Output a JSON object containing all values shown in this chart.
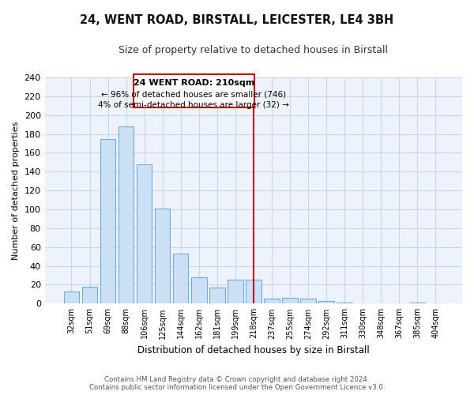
{
  "title": "24, WENT ROAD, BIRSTALL, LEICESTER, LE4 3BH",
  "subtitle": "Size of property relative to detached houses in Birstall",
  "xlabel": "Distribution of detached houses by size in Birstall",
  "ylabel": "Number of detached properties",
  "bar_labels": [
    "32sqm",
    "51sqm",
    "69sqm",
    "88sqm",
    "106sqm",
    "125sqm",
    "144sqm",
    "162sqm",
    "181sqm",
    "199sqm",
    "218sqm",
    "237sqm",
    "255sqm",
    "274sqm",
    "292sqm",
    "311sqm",
    "330sqm",
    "348sqm",
    "367sqm",
    "385sqm",
    "404sqm"
  ],
  "bar_values": [
    13,
    18,
    175,
    188,
    148,
    101,
    53,
    28,
    17,
    25,
    25,
    5,
    6,
    5,
    3,
    1,
    0,
    0,
    0,
    1,
    0
  ],
  "bar_color": "#cce0f5",
  "bar_edge_color": "#6baed6",
  "highlight_index": 10,
  "highlight_line_color": "#cc0000",
  "property_line_label": "24 WENT ROAD: 210sqm",
  "annotation_line1": "← 96% of detached houses are smaller (746)",
  "annotation_line2": "4% of semi-detached houses are larger (32) →",
  "annotation_box_color": "#ffffff",
  "annotation_box_edge_color": "#cc0000",
  "ylim": [
    0,
    240
  ],
  "yticks": [
    0,
    20,
    40,
    60,
    80,
    100,
    120,
    140,
    160,
    180,
    200,
    220,
    240
  ],
  "footer_line1": "Contains HM Land Registry data © Crown copyright and database right 2024.",
  "footer_line2": "Contains public sector information licensed under the Open Government Licence v3.0.",
  "bg_color": "#ffffff",
  "plot_bg_color": "#eef3fb",
  "grid_color": "#c8d4e8"
}
